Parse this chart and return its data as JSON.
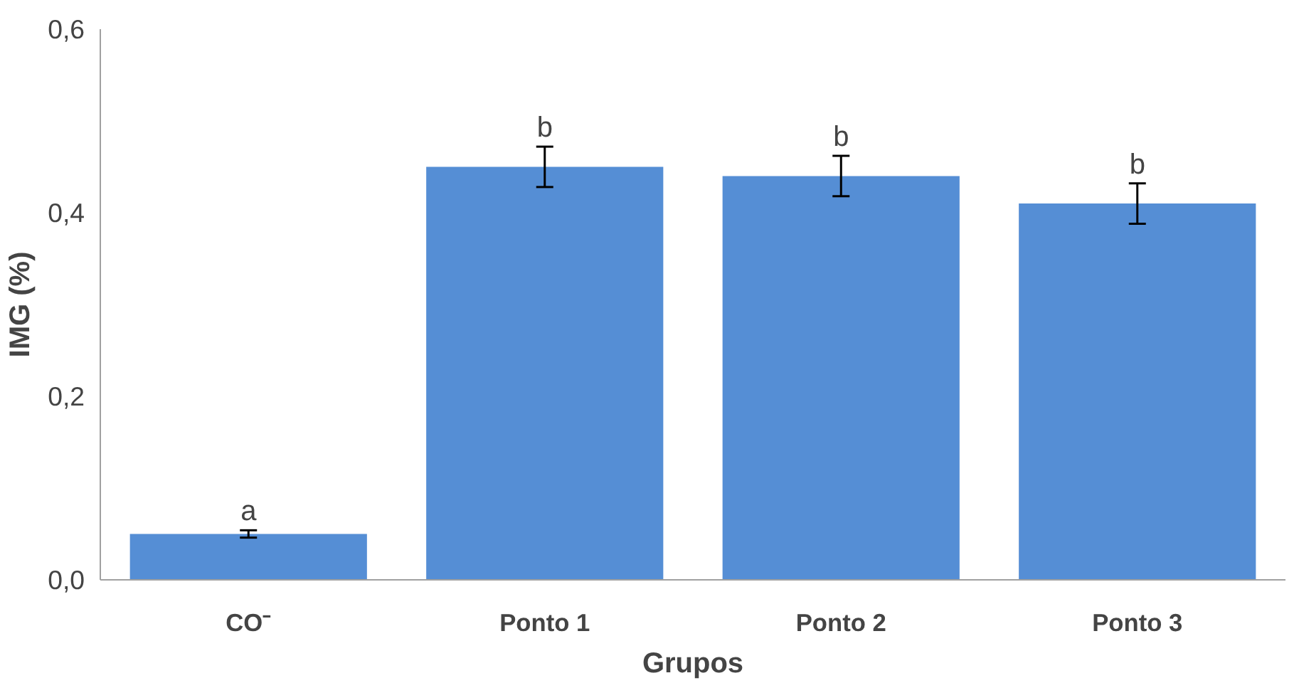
{
  "chart_data": {
    "type": "bar",
    "xlabel": "Grupos",
    "ylabel": "IMG (%)",
    "categories": [
      "CO⁻",
      "Ponto 1",
      "Ponto 2",
      "Ponto 3"
    ],
    "values": [
      0.05,
      0.45,
      0.44,
      0.41
    ],
    "color": "#558ed5",
    "errors": [
      0.004,
      0.022,
      0.022,
      0.022
    ],
    "ylim": [
      0,
      0.6
    ],
    "yticks": [
      {
        "value": 0,
        "label": "0,0"
      },
      {
        "value": 0.2,
        "label": "0,2"
      },
      {
        "value": 0.4,
        "label": "0,4"
      },
      {
        "value": 0.6,
        "label": "0,6"
      }
    ],
    "grid": false,
    "annotations": [
      "a",
      "b",
      "b",
      "b"
    ]
  }
}
